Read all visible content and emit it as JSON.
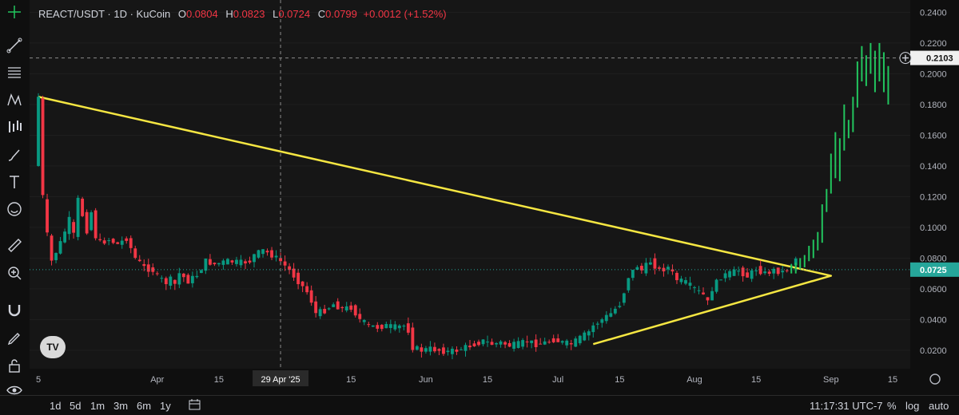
{
  "header": {
    "symbol": "REACT/USDT · 1D · KuCoin",
    "open_label": "O",
    "open": "0.0804",
    "high_label": "H",
    "high": "0.0823",
    "low_label": "L",
    "low": "0.0724",
    "close_label": "C",
    "close": "0.0799",
    "change": "+0.0012 (+1.52%)"
  },
  "toolbar_icons": [
    "crosshair-icon",
    "trend-line-icon",
    "fib-lines-icon",
    "pattern-icon",
    "forecast-icon",
    "brush-icon",
    "text-icon",
    "emoji-icon",
    "ruler-icon",
    "zoom-icon",
    "magnet-icon",
    "lock-drawing-icon",
    "lock-icon",
    "eye-icon"
  ],
  "bottom": {
    "timeframes": [
      "1d",
      "5d",
      "1m",
      "3m",
      "6m",
      "1y"
    ],
    "clock": "11:17:31 UTC-7",
    "percent": "%",
    "log": "log",
    "auto": "auto"
  },
  "colors": {
    "up": "#089981",
    "down": "#f23645",
    "triangle": "#f5e642",
    "projection": "#22c55e",
    "price_line": "#26a69a"
  },
  "chart_data": {
    "type": "candlestick",
    "title": "REACT/USDT · 1D · KuCoin",
    "y_ticks": [
      0.02,
      0.04,
      0.06,
      0.08,
      0.1,
      0.12,
      0.14,
      0.16,
      0.18,
      0.2,
      0.22,
      0.24
    ],
    "y_tick_labels": [
      "0.0200",
      "0.0400",
      "0.0600",
      "0.0800",
      "0.1000",
      "0.1200",
      "0.1400",
      "0.1600",
      "0.1800",
      "0.2000",
      "0.2200",
      "0.2400"
    ],
    "ylim": [
      0.008,
      0.248
    ],
    "x_ticks": [
      {
        "label": "5",
        "day": 0
      },
      {
        "label": "Apr",
        "day": 27
      },
      {
        "label": "15",
        "day": 41
      },
      {
        "label": "29 Apr '25",
        "day": 55,
        "highlight": true
      },
      {
        "label": "15",
        "day": 71
      },
      {
        "label": "Jun",
        "day": 88
      },
      {
        "label": "15",
        "day": 102
      },
      {
        "label": "Jul",
        "day": 118
      },
      {
        "label": "15",
        "day": 132
      },
      {
        "label": "Aug",
        "day": 149
      },
      {
        "label": "15",
        "day": 163
      },
      {
        "label": "Sep",
        "day": 180
      },
      {
        "label": "15",
        "day": 194
      }
    ],
    "xlim_days": [
      -2,
      198
    ],
    "last_price": "0.0725",
    "last_price_value": 0.0725,
    "crosshair_price": "0.2103",
    "crosshair_value": 0.2103,
    "crosshair_day": 55,
    "candle_anchors": [
      [
        0,
        0.14,
        0.185
      ],
      [
        1,
        0.185,
        0.12
      ],
      [
        2,
        0.12,
        0.095
      ],
      [
        3,
        0.095,
        0.078
      ],
      [
        4,
        0.078,
        0.09
      ],
      [
        6,
        0.09,
        0.105
      ],
      [
        8,
        0.105,
        0.095
      ],
      [
        9,
        0.095,
        0.118
      ],
      [
        10,
        0.118,
        0.098
      ],
      [
        12,
        0.098,
        0.11
      ],
      [
        13,
        0.11,
        0.094
      ],
      [
        14,
        0.094,
        0.09
      ],
      [
        15,
        0.09,
        0.092
      ],
      [
        17,
        0.092,
        0.089
      ],
      [
        19,
        0.089,
        0.093
      ],
      [
        21,
        0.093,
        0.08
      ],
      [
        23,
        0.08,
        0.074
      ],
      [
        25,
        0.074,
        0.072
      ],
      [
        27,
        0.072,
        0.068
      ],
      [
        28,
        0.068,
        0.064
      ],
      [
        30,
        0.064,
        0.066
      ],
      [
        31,
        0.066,
        0.063
      ],
      [
        32,
        0.063,
        0.07
      ],
      [
        33,
        0.07,
        0.065
      ],
      [
        35,
        0.065,
        0.069
      ],
      [
        37,
        0.069,
        0.078
      ],
      [
        39,
        0.078,
        0.076
      ],
      [
        41,
        0.076,
        0.078
      ],
      [
        44,
        0.078,
        0.077
      ],
      [
        47,
        0.077,
        0.078
      ],
      [
        49,
        0.078,
        0.082
      ],
      [
        50,
        0.082,
        0.085
      ],
      [
        52,
        0.085,
        0.082
      ],
      [
        54,
        0.082,
        0.078
      ],
      [
        56,
        0.078,
        0.072
      ],
      [
        58,
        0.072,
        0.065
      ],
      [
        60,
        0.065,
        0.058
      ],
      [
        62,
        0.058,
        0.052
      ],
      [
        63,
        0.052,
        0.044
      ],
      [
        64,
        0.044,
        0.046
      ],
      [
        66,
        0.046,
        0.05
      ],
      [
        68,
        0.05,
        0.047
      ],
      [
        70,
        0.047,
        0.048
      ],
      [
        72,
        0.048,
        0.04
      ],
      [
        74,
        0.04,
        0.036
      ],
      [
        76,
        0.036,
        0.035
      ],
      [
        78,
        0.035,
        0.036
      ],
      [
        80,
        0.036,
        0.035
      ],
      [
        82,
        0.035,
        0.036
      ],
      [
        84,
        0.036,
        0.033
      ],
      [
        85,
        0.033,
        0.022
      ],
      [
        86,
        0.022,
        0.02
      ],
      [
        88,
        0.02,
        0.021
      ],
      [
        90,
        0.021,
        0.02
      ],
      [
        92,
        0.02,
        0.019
      ],
      [
        94,
        0.019,
        0.02
      ],
      [
        96,
        0.02,
        0.022
      ],
      [
        98,
        0.022,
        0.024
      ],
      [
        100,
        0.024,
        0.026
      ],
      [
        102,
        0.026,
        0.024
      ],
      [
        104,
        0.024,
        0.025
      ],
      [
        106,
        0.025,
        0.023
      ],
      [
        108,
        0.023,
        0.024
      ],
      [
        110,
        0.024,
        0.026
      ],
      [
        112,
        0.026,
        0.024
      ],
      [
        114,
        0.024,
        0.025
      ],
      [
        116,
        0.025,
        0.027
      ],
      [
        118,
        0.027,
        0.025
      ],
      [
        120,
        0.025,
        0.024
      ],
      [
        122,
        0.024,
        0.028
      ],
      [
        124,
        0.028,
        0.032
      ],
      [
        126,
        0.032,
        0.036
      ],
      [
        127,
        0.036,
        0.04
      ],
      [
        129,
        0.04,
        0.044
      ],
      [
        131,
        0.044,
        0.05
      ],
      [
        133,
        0.05,
        0.058
      ],
      [
        134,
        0.058,
        0.068
      ],
      [
        135,
        0.068,
        0.075
      ],
      [
        137,
        0.075,
        0.072
      ],
      [
        138,
        0.072,
        0.078
      ],
      [
        140,
        0.078,
        0.072
      ],
      [
        142,
        0.072,
        0.074
      ],
      [
        144,
        0.074,
        0.066
      ],
      [
        146,
        0.066,
        0.064
      ],
      [
        148,
        0.064,
        0.06
      ],
      [
        150,
        0.06,
        0.058
      ],
      [
        151,
        0.058,
        0.056
      ],
      [
        152,
        0.056,
        0.051
      ],
      [
        153,
        0.051,
        0.06
      ],
      [
        154,
        0.06,
        0.068
      ],
      [
        156,
        0.068,
        0.07
      ],
      [
        158,
        0.07,
        0.072
      ],
      [
        160,
        0.072,
        0.068
      ],
      [
        162,
        0.068,
        0.073
      ],
      [
        164,
        0.073,
        0.07
      ],
      [
        166,
        0.07,
        0.072
      ],
      [
        168,
        0.072,
        0.071
      ],
      [
        170,
        0.071,
        0.075
      ],
      [
        172,
        0.075,
        0.08
      ]
    ],
    "projection_bars": [
      [
        171,
        0.07,
        0.076
      ],
      [
        172,
        0.07,
        0.077
      ],
      [
        173,
        0.073,
        0.08
      ],
      [
        174,
        0.074,
        0.082
      ],
      [
        175,
        0.078,
        0.088
      ],
      [
        176,
        0.08,
        0.092
      ],
      [
        177,
        0.085,
        0.097
      ],
      [
        178,
        0.09,
        0.115
      ],
      [
        179,
        0.11,
        0.125
      ],
      [
        180,
        0.122,
        0.148
      ],
      [
        181,
        0.132,
        0.162
      ],
      [
        182,
        0.13,
        0.158
      ],
      [
        183,
        0.15,
        0.18
      ],
      [
        184,
        0.158,
        0.17
      ],
      [
        185,
        0.162,
        0.185
      ],
      [
        186,
        0.178,
        0.208
      ],
      [
        187,
        0.195,
        0.218
      ],
      [
        188,
        0.192,
        0.212
      ],
      [
        189,
        0.2,
        0.22
      ],
      [
        190,
        0.188,
        0.215
      ],
      [
        191,
        0.195,
        0.22
      ],
      [
        192,
        0.188,
        0.214
      ],
      [
        193,
        0.18,
        0.205
      ]
    ],
    "triangle": [
      [
        0,
        0.185
      ],
      [
        180,
        0.0685
      ],
      [
        126,
        0.024
      ]
    ]
  }
}
